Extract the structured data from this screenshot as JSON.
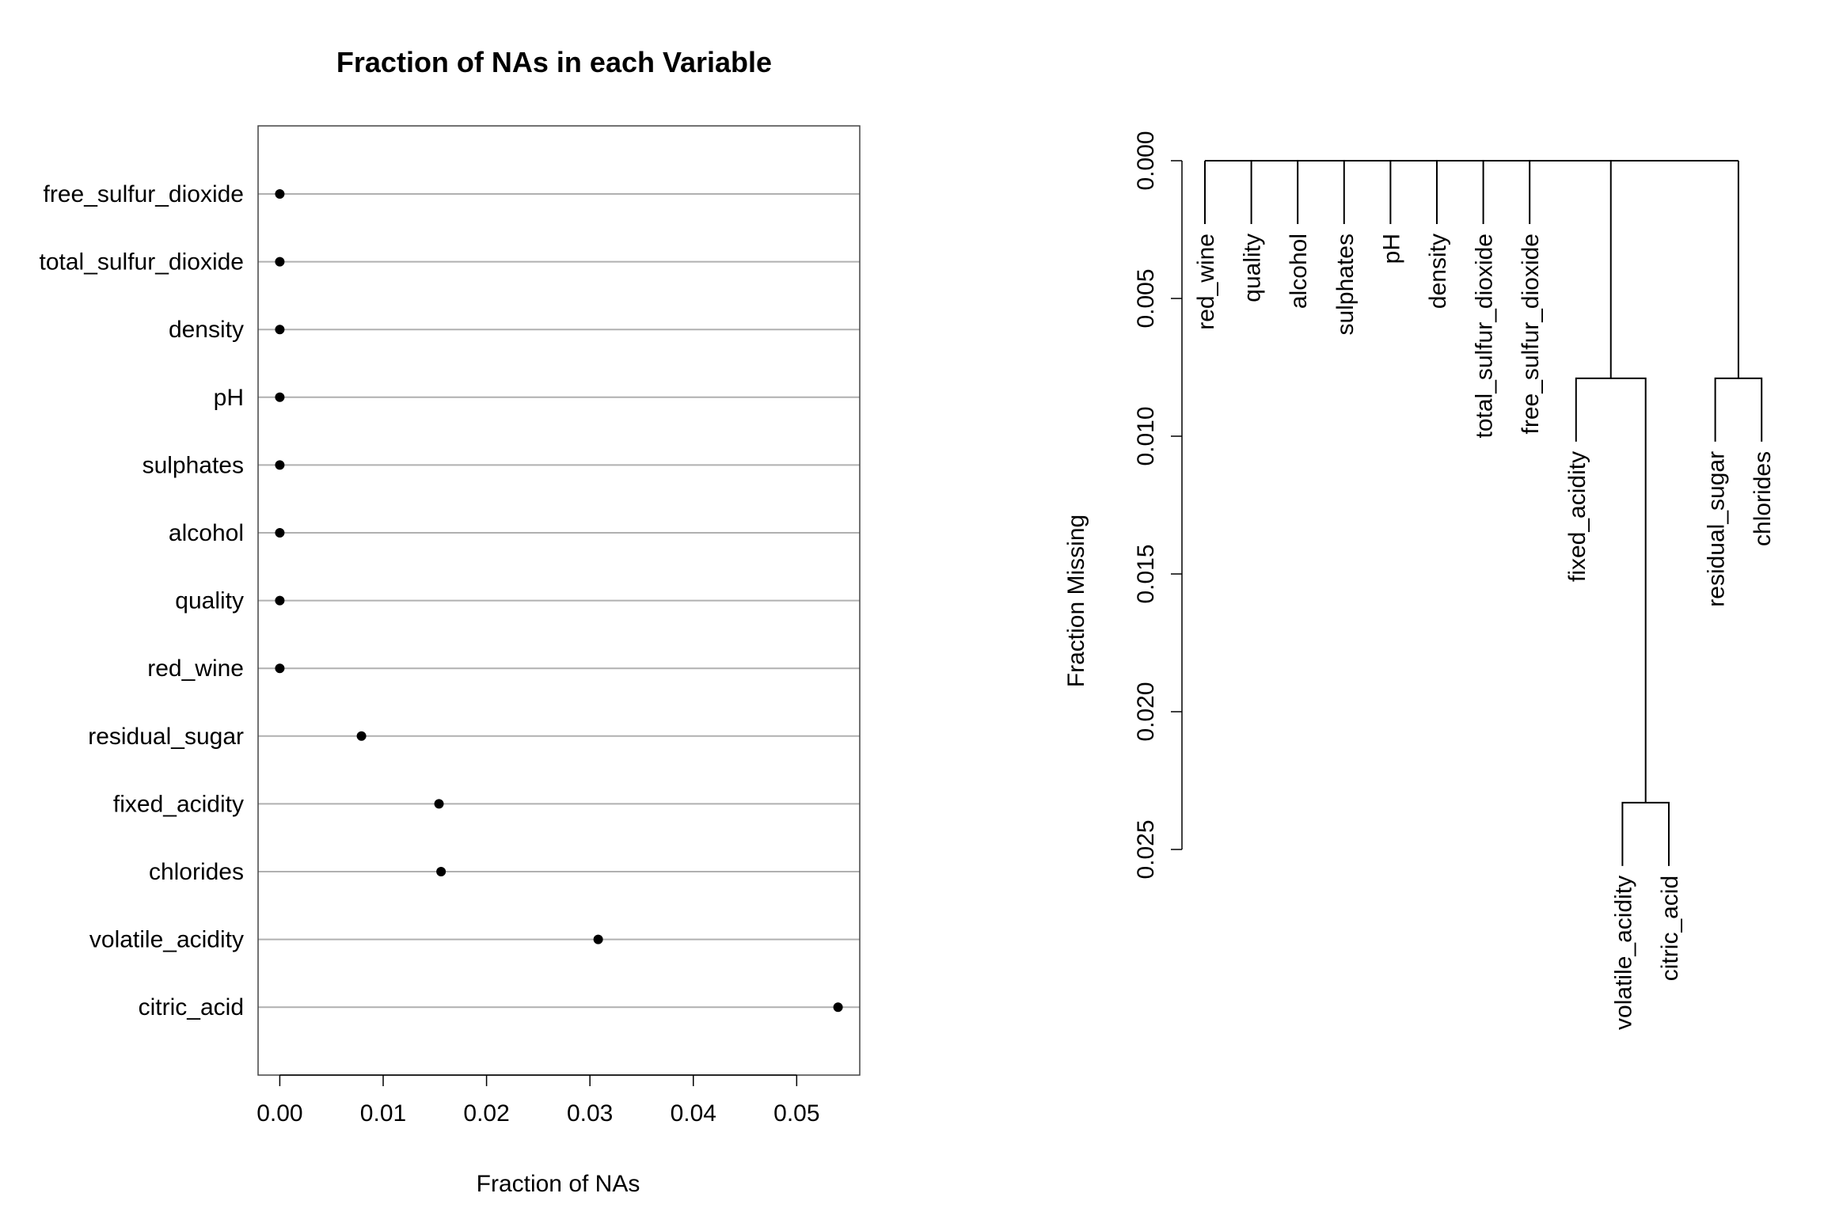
{
  "chart_data": [
    {
      "type": "dotplot",
      "title": "Fraction of NAs in each Variable",
      "xlabel": "Fraction of NAs",
      "ylabel": "",
      "xlim": [
        -0.0021,
        0.0561
      ],
      "x_ticks": [
        0.0,
        0.01,
        0.02,
        0.03,
        0.04,
        0.05
      ],
      "x_tick_labels": [
        "0.00",
        "0.01",
        "0.02",
        "0.03",
        "0.04",
        "0.05"
      ],
      "grid": "horizontal reference lines at each variable",
      "categories": [
        "free_sulfur_dioxide",
        "total_sulfur_dioxide",
        "density",
        "pH",
        "sulphates",
        "alcohol",
        "quality",
        "red_wine",
        "residual_sugar",
        "fixed_acidity",
        "chlorides",
        "volatile_acidity",
        "citric_acid"
      ],
      "values": [
        0,
        0,
        0,
        0,
        0,
        0,
        0,
        0,
        0.0079,
        0.0154,
        0.0156,
        0.0308,
        0.054
      ]
    },
    {
      "type": "dendrogram",
      "title": "",
      "ylabel": "Fraction Missing",
      "ylim": [
        0,
        0.025
      ],
      "y_ticks": [
        0.0,
        0.005,
        0.01,
        0.015,
        0.02,
        0.025
      ],
      "y_tick_labels": [
        "0.000",
        "0.005",
        "0.010",
        "0.015",
        "0.020",
        "0.025"
      ],
      "leaves": [
        "red_wine",
        "quality",
        "alcohol",
        "sulphates",
        "pH",
        "density",
        "total_sulfur_dioxide",
        "free_sulfur_dioxide",
        "fixed_acidity",
        "volatile_acidity",
        "citric_acid",
        "residual_sugar",
        "chlorides"
      ],
      "merges": [
        {
          "left": "volatile_acidity",
          "right": "citric_acid",
          "height": 0.0233
        },
        {
          "left": "fixed_acidity",
          "right": "volatile_acidity + citric_acid",
          "height": 0.0079
        },
        {
          "left": "residual_sugar",
          "right": "chlorides",
          "height": 0.0079
        },
        {
          "left": "red_wine ... free_sulfur_dioxide + all clusters",
          "right": "",
          "height": 0.0
        }
      ]
    }
  ]
}
